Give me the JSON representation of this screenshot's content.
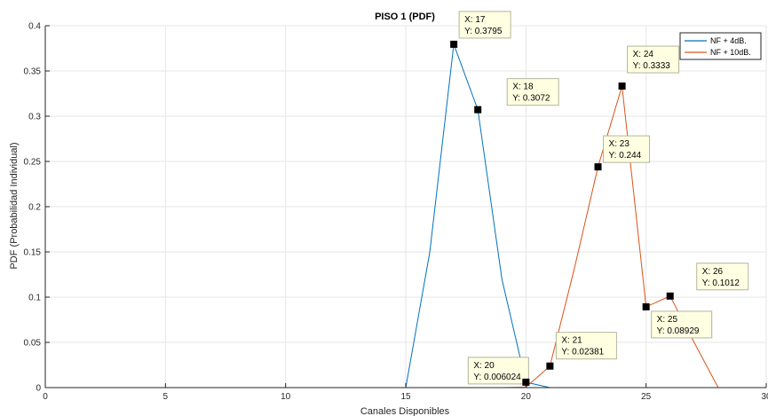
{
  "chart_data": {
    "type": "line",
    "title": "PISO 1 (PDF)",
    "xlabel": "Canales Disponibles",
    "ylabel": "PDF (Probabilidad Individual)",
    "xlim": [
      0,
      30
    ],
    "ylim": [
      0,
      0.4
    ],
    "xticks": [
      0,
      5,
      10,
      15,
      20,
      25,
      30
    ],
    "yticks": [
      0,
      0.05,
      0.1,
      0.15,
      0.2,
      0.25,
      0.3,
      0.35,
      0.4
    ],
    "xtick_labels": [
      "0",
      "5",
      "10",
      "15",
      "20",
      "25",
      "30"
    ],
    "ytick_labels": [
      "0",
      "0.05",
      "0.1",
      "0.15",
      "0.2",
      "0.25",
      "0.3",
      "0.35",
      "0.4"
    ],
    "grid": true,
    "legend_position": "top-right",
    "series": [
      {
        "name": "NF + 4dB.",
        "color": "#0072bd",
        "x": [
          0,
          15,
          16,
          17,
          18,
          19,
          20,
          21,
          22,
          30
        ],
        "y": [
          0,
          0,
          0.15,
          0.3795,
          0.3072,
          0.12,
          0.006024,
          0,
          0,
          0
        ]
      },
      {
        "name": "NF + 10dB.",
        "color": "#d95319",
        "x": [
          0,
          19,
          20,
          21,
          22,
          23,
          24,
          25,
          26,
          27,
          28,
          30
        ],
        "y": [
          0,
          0,
          0.0005,
          0.02381,
          0.13,
          0.244,
          0.3333,
          0.08929,
          0.1012,
          0.05,
          0,
          0
        ]
      }
    ],
    "datatips": [
      {
        "x": 17,
        "y": 0.3795,
        "xlabel": "X: 17",
        "ylabel": "Y: 0.3795",
        "marker_color": "#000000"
      },
      {
        "x": 18,
        "y": 0.3072,
        "xlabel": "X: 18",
        "ylabel": "Y: 0.3072",
        "marker_color": "#000000"
      },
      {
        "x": 20,
        "y": 0.006024,
        "xlabel": "X: 20",
        "ylabel": "Y: 0.006024",
        "marker_color": "#000000"
      },
      {
        "x": 21,
        "y": 0.02381,
        "xlabel": "X: 21",
        "ylabel": "Y: 0.02381",
        "marker_color": "#000000"
      },
      {
        "x": 23,
        "y": 0.244,
        "xlabel": "X: 23",
        "ylabel": "Y: 0.244",
        "marker_color": "#000000"
      },
      {
        "x": 24,
        "y": 0.3333,
        "xlabel": "X: 24",
        "ylabel": "Y: 0.3333",
        "marker_color": "#000000"
      },
      {
        "x": 25,
        "y": 0.08929,
        "xlabel": "X: 25",
        "ylabel": "Y: 0.08929",
        "marker_color": "#000000"
      },
      {
        "x": 26,
        "y": 0.1012,
        "xlabel": "X: 26",
        "ylabel": "Y: 0.1012",
        "marker_color": "#000000"
      }
    ]
  },
  "colors": {
    "grid": "#e6e6e6",
    "axis": "#262626",
    "datatip_bg": "#ffffe1",
    "datatip_border": "#b4b4a0"
  }
}
